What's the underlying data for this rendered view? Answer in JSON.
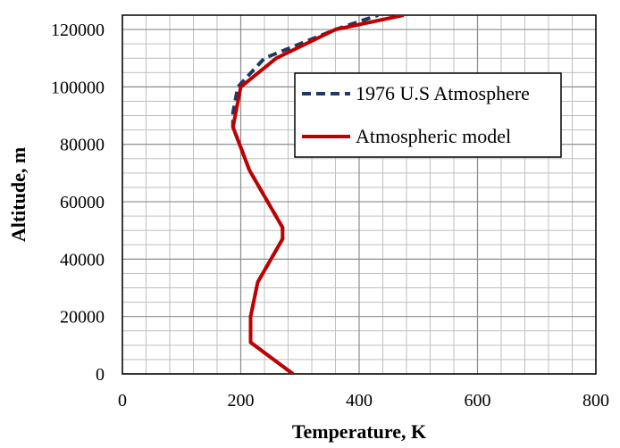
{
  "chart_data": {
    "type": "line",
    "title": "",
    "xlabel": "Temperature, K",
    "ylabel": "Altitude, m",
    "xlim": [
      0,
      800
    ],
    "ylim": [
      0,
      125000
    ],
    "x_ticks": [
      "0",
      "200",
      "400",
      "600",
      "800"
    ],
    "y_ticks": [
      "0",
      "20000",
      "40000",
      "60000",
      "80000",
      "100000",
      "120000"
    ],
    "grid": true,
    "legend_position": "upper-right",
    "series": [
      {
        "name": "1976 U.S Atmosphere",
        "color": "#1f3864",
        "style": "dashed",
        "x": [
          288.15,
          216.65,
          216.65,
          228.65,
          270.65,
          270.65,
          214.65,
          186.87,
          186.87,
          195.1,
          240.0,
          360.0,
          432.0
        ],
        "y": [
          0,
          11000,
          20000,
          32000,
          47000,
          51000,
          71000,
          86000,
          91000,
          100000,
          110000,
          120000,
          125000
        ]
      },
      {
        "name": "Atmospheric model",
        "color": "#c00000",
        "style": "solid",
        "x": [
          288.15,
          216.65,
          216.65,
          228.65,
          270.65,
          270.65,
          214.65,
          186.87,
          200.0,
          260.0,
          360.0,
          475.0
        ],
        "y": [
          0,
          11000,
          20000,
          32000,
          47000,
          51000,
          71000,
          86000,
          100000,
          110000,
          120000,
          125000
        ]
      }
    ]
  }
}
